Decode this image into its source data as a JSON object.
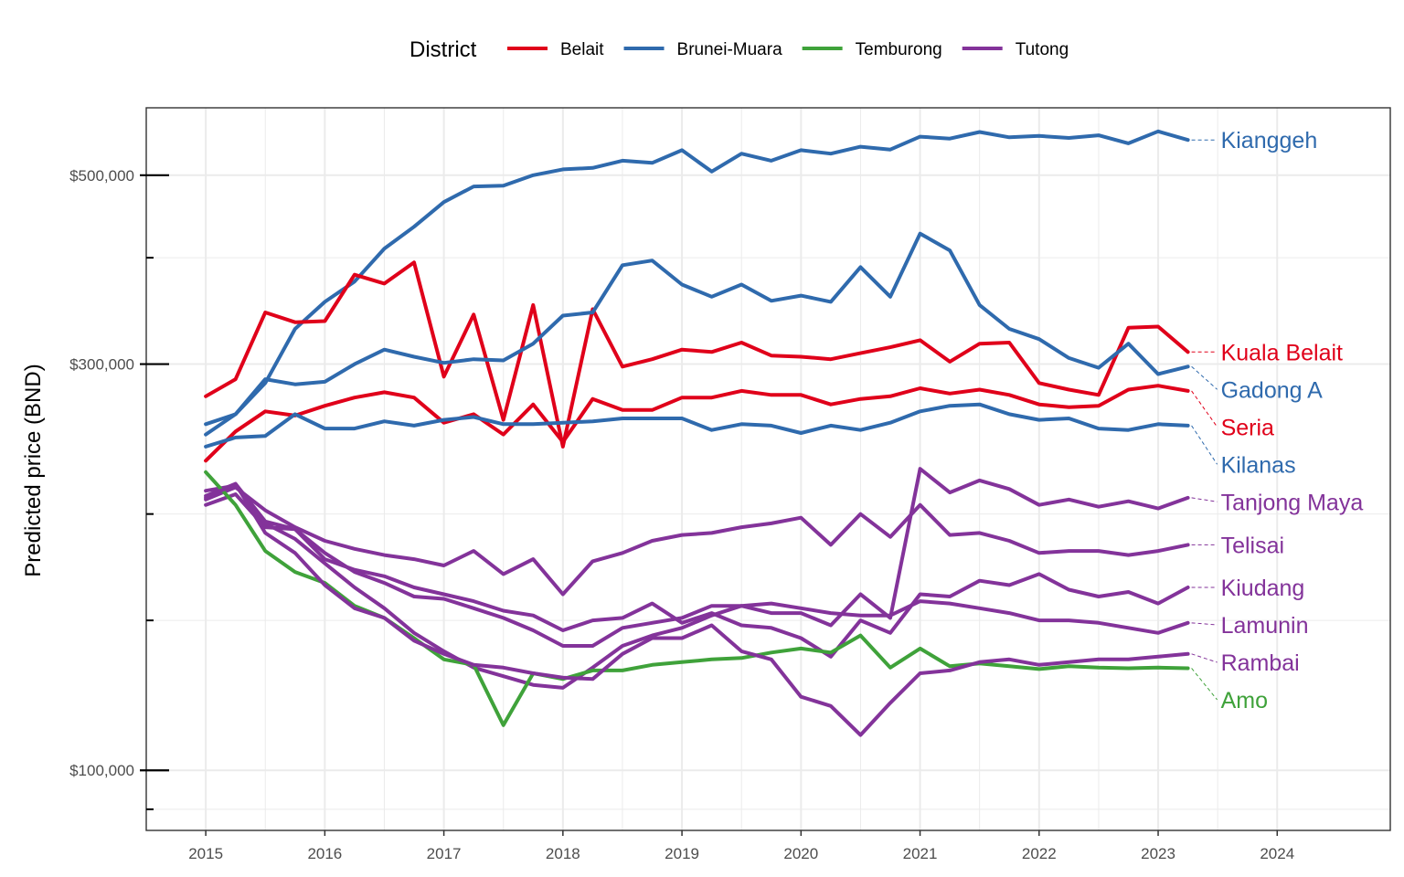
{
  "chart_data": {
    "type": "line",
    "title": "",
    "xlabel": "",
    "ylabel": "Predicted price (BND)",
    "y_scale": "log",
    "xlim": [
      2014.5,
      2024.95
    ],
    "ylim": [
      85000,
      600000
    ],
    "x_ticks": [
      2015,
      2016,
      2017,
      2018,
      2019,
      2020,
      2021,
      2022,
      2023,
      2024
    ],
    "x_tick_labels": [
      "2015",
      "2016",
      "2017",
      "2018",
      "2019",
      "2020",
      "2021",
      "2022",
      "2023",
      "2024"
    ],
    "y_ticks": [
      100000,
      300000,
      500000
    ],
    "y_tick_labels": [
      "$100,000",
      "$300,000",
      "$500,000"
    ],
    "y_minor_ticks": [
      90000,
      150000,
      200000,
      400000,
      600000
    ],
    "grid": true,
    "legend": {
      "title": "District",
      "position": "top",
      "entries": [
        {
          "name": "Belait",
          "color": "#e0001a"
        },
        {
          "name": "Brunei-Muara",
          "color": "#2f6aad"
        },
        {
          "name": "Temburong",
          "color": "#3fa23a"
        },
        {
          "name": "Tutong",
          "color": "#83339a"
        }
      ]
    },
    "district_colors": {
      "Belait": "#e0001a",
      "Brunei-Muara": "#2f6aad",
      "Temburong": "#3fa23a",
      "Tutong": "#83339a"
    },
    "x": [
      2015.0,
      2015.25,
      2015.5,
      2015.75,
      2016.0,
      2016.25,
      2016.5,
      2016.75,
      2017.0,
      2017.25,
      2017.5,
      2017.75,
      2018.0,
      2018.25,
      2018.5,
      2018.75,
      2019.0,
      2019.25,
      2019.5,
      2019.75,
      2020.0,
      2020.25,
      2020.5,
      2020.75,
      2021.0,
      2021.25,
      2021.5,
      2021.75,
      2022.0,
      2022.25,
      2022.5,
      2022.75,
      2023.0,
      2023.25
    ],
    "series": [
      {
        "name": "Kianggeh",
        "district": "Brunei-Muara",
        "highlight": true,
        "values": [
          248000,
          262000,
          285000,
          330000,
          355000,
          375000,
          410000,
          435000,
          465000,
          485000,
          486000,
          500000,
          508000,
          510000,
          520000,
          517000,
          535000,
          505000,
          530000,
          520000,
          535000,
          530000,
          540000,
          536000,
          555000,
          552000,
          562000,
          554000,
          556000,
          553000,
          557000,
          545000,
          563000,
          550000
        ]
      },
      {
        "name": "Kuala Belait",
        "district": "Belait",
        "highlight": true,
        "values": [
          275000,
          288000,
          345000,
          336000,
          337000,
          382000,
          373000,
          395000,
          290000,
          343000,
          258000,
          352000,
          240000,
          348000,
          298000,
          304000,
          312000,
          310000,
          318000,
          307000,
          306000,
          304000,
          309000,
          314000,
          320000,
          302000,
          317000,
          318000,
          285000,
          280000,
          276000,
          331000,
          332000,
          310000
        ]
      },
      {
        "name": "Gadong A",
        "district": "Brunei-Muara",
        "highlight": true,
        "values": [
          255000,
          262000,
          288000,
          284000,
          286000,
          300000,
          312000,
          306000,
          301000,
          304000,
          303000,
          317000,
          342000,
          345000,
          392000,
          397000,
          372000,
          360000,
          372000,
          356000,
          361000,
          355000,
          390000,
          360000,
          427000,
          408000,
          352000,
          330000,
          321000,
          305000,
          297000,
          317000,
          292000,
          298000
        ]
      },
      {
        "name": "Seria",
        "district": "Belait",
        "highlight": true,
        "values": [
          231000,
          250000,
          264000,
          261000,
          268000,
          274000,
          278000,
          274000,
          256000,
          262000,
          248000,
          269000,
          243000,
          273000,
          265000,
          265000,
          274000,
          274000,
          279000,
          276000,
          276000,
          269000,
          273000,
          275000,
          281000,
          277000,
          280000,
          276000,
          269000,
          267000,
          268000,
          280000,
          283000,
          279000
        ]
      },
      {
        "name": "Kilanas",
        "district": "Brunei-Muara",
        "highlight": true,
        "values": [
          240000,
          246000,
          247000,
          262000,
          252000,
          252000,
          257000,
          254000,
          258000,
          260000,
          255000,
          255000,
          256000,
          257000,
          259000,
          259000,
          259000,
          251000,
          255000,
          254000,
          249000,
          254000,
          251000,
          256000,
          264000,
          268000,
          269000,
          262000,
          258000,
          259000,
          252000,
          251000,
          255000,
          254000
        ]
      },
      {
        "name": "Tanjong Maya",
        "district": "Tutong",
        "highlight": true,
        "values": [
          210000,
          217000,
          196000,
          192000,
          180000,
          171000,
          166000,
          160000,
          159000,
          155000,
          151000,
          146000,
          140000,
          140000,
          147000,
          149000,
          151000,
          156000,
          156000,
          153000,
          153000,
          148000,
          161000,
          151000,
          226000,
          212000,
          219000,
          214000,
          205000,
          208000,
          204000,
          207000,
          203000,
          209000
        ]
      },
      {
        "name": "Telisai",
        "district": "Tutong",
        "highlight": true,
        "values": [
          208000,
          215000,
          202000,
          193000,
          186000,
          182000,
          179000,
          177000,
          174000,
          181000,
          170000,
          177000,
          161000,
          176000,
          180000,
          186000,
          189000,
          190000,
          193000,
          195000,
          198000,
          184000,
          200000,
          188000,
          205000,
          189000,
          190000,
          186000,
          180000,
          181000,
          181000,
          179000,
          181000,
          184000
        ]
      },
      {
        "name": "Kiudang",
        "district": "Tutong",
        "highlight": true,
        "values": [
          205000,
          211000,
          193000,
          192000,
          177000,
          172000,
          169000,
          164000,
          161000,
          158000,
          154000,
          152000,
          146000,
          150000,
          151000,
          157000,
          149000,
          153000,
          148000,
          147000,
          143000,
          136000,
          150000,
          145000,
          161000,
          160000,
          167000,
          165000,
          170000,
          163000,
          160000,
          162000,
          157000,
          164000
        ]
      },
      {
        "name": "Lamunin",
        "district": "Tutong",
        "highlight": true,
        "values": [
          213000,
          216000,
          195000,
          187000,
          175000,
          164000,
          155000,
          145000,
          138000,
          132000,
          129000,
          126000,
          125000,
          132000,
          140000,
          144000,
          147000,
          152000,
          156000,
          157000,
          155000,
          153000,
          152000,
          152000,
          158000,
          157000,
          155000,
          153000,
          150000,
          150000,
          149000,
          147000,
          145000,
          149000
        ]
      },
      {
        "name": "Amo",
        "district": "Temburong",
        "highlight": true,
        "values": [
          224000,
          205000,
          181000,
          171000,
          166000,
          156000,
          151000,
          143000,
          135000,
          133000,
          113000,
          130000,
          128000,
          131000,
          131000,
          133000,
          134000,
          135000,
          135500,
          137500,
          139000,
          137500,
          144000,
          132000,
          139000,
          132500,
          133500,
          132500,
          131500,
          132500,
          132000,
          131800,
          132000,
          131800
        ]
      },
      {
        "name": "Rambai",
        "district": "Tutong",
        "highlight": true,
        "values": [
          209000,
          217000,
          190000,
          180000,
          165000,
          155000,
          151000,
          142000,
          137000,
          133000,
          132000,
          130000,
          128500,
          128000,
          137000,
          143000,
          143000,
          148000,
          138000,
          135000,
          122000,
          119000,
          110000,
          120000,
          130000,
          131000,
          134000,
          135000,
          133000,
          134000,
          135000,
          135000,
          136000,
          137000
        ]
      }
    ],
    "end_labels": [
      "Kianggeh",
      "Kuala Belait",
      "Gadong A",
      "Seria",
      "Kilanas",
      "Tanjong Maya",
      "Telisai",
      "Kiudang",
      "Lamunin",
      "Amo",
      "Rambai"
    ]
  }
}
